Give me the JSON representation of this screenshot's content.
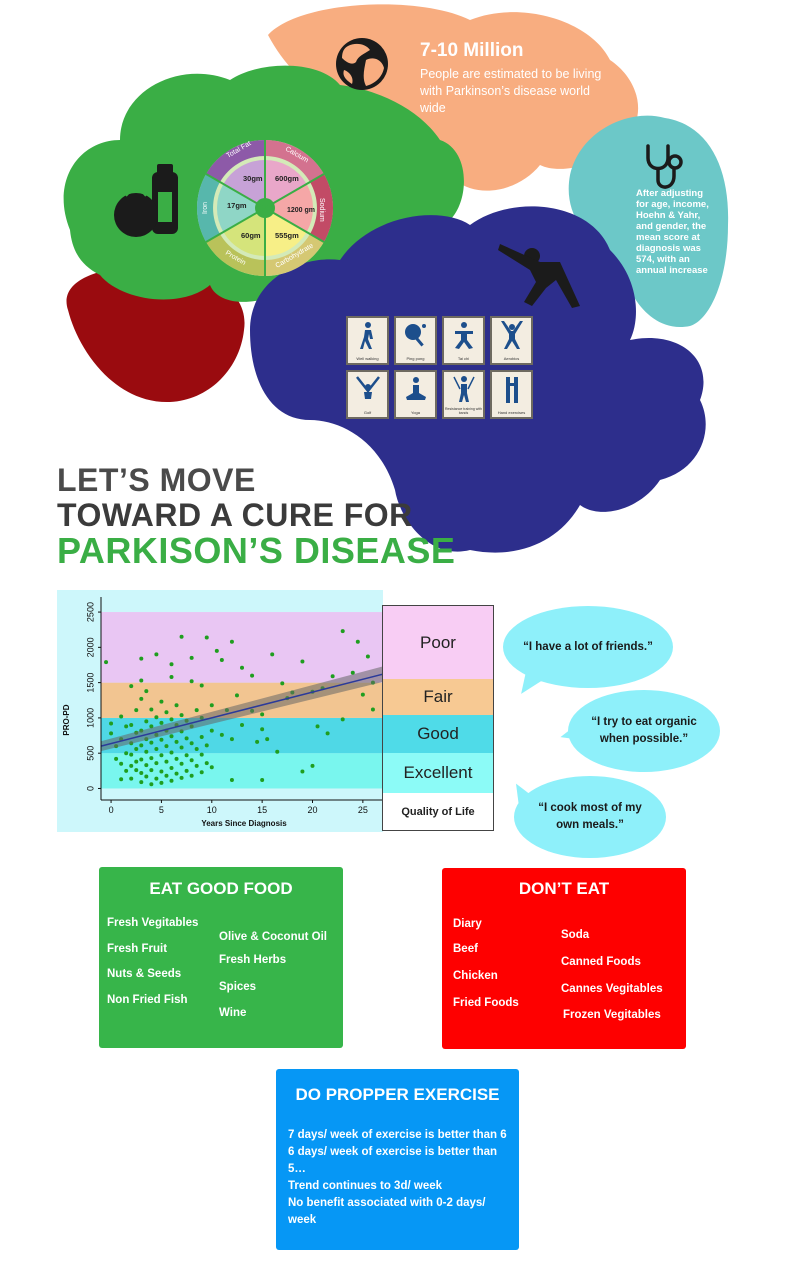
{
  "stats": {
    "population_title": "7-10 Million",
    "population_text": "People are estimated to be living with Parkinson’s disease world wide",
    "pro_pd_text": "After adjusting for age, income, Hoehn & Yahr, and gender, the mean score at diagnosis was 574, with an annual increase"
  },
  "nutrition_wheel": {
    "segments": [
      {
        "label": "Total Fat",
        "value": "30gm"
      },
      {
        "label": "Calcium",
        "value": "600gm"
      },
      {
        "label": "Sodium",
        "value": "1200 gm"
      },
      {
        "label": "Carbohydrate",
        "value": "555gm"
      },
      {
        "label": "Protein",
        "value": "60gm"
      },
      {
        "label": "Iron",
        "value": "17gm"
      }
    ]
  },
  "exercises": [
    "Well walking",
    "Ping pong",
    "Tai chi",
    "Aerobics",
    "Golf",
    "Yoga",
    "Resistance training with bands",
    "Hand exercises"
  ],
  "headline": {
    "line1": "LET’S MOVE",
    "line2": "TOWARD A CURE FOR",
    "line3": "PARKISON’S DISEASE"
  },
  "chart_data": {
    "type": "scatter",
    "xlabel": "Years Since Diagnosis",
    "ylabel": "PRO-PD",
    "xlim": [
      -1,
      27
    ],
    "ylim": [
      -50,
      2600
    ],
    "x_ticks": [
      0,
      5,
      10,
      15,
      20,
      25
    ],
    "y_ticks": [
      0,
      500,
      1000,
      1500,
      2000,
      2500
    ],
    "trend_line": {
      "x": [
        -1,
        27
      ],
      "y": [
        600,
        1620
      ]
    },
    "bands": [
      {
        "name": "Excellent",
        "y0": 0,
        "y1": 500,
        "color": "#79f6ee"
      },
      {
        "name": "Good",
        "y0": 500,
        "y1": 1000,
        "color": "#4fd8e6"
      },
      {
        "name": "Fair",
        "y0": 1000,
        "y1": 1500,
        "color": "#f2c591"
      },
      {
        "name": "Poor",
        "y0": 1500,
        "y1": 2500,
        "color": "#e9c6f3"
      }
    ],
    "points": [
      [
        -0.5,
        1790
      ],
      [
        0,
        920
      ],
      [
        0,
        780
      ],
      [
        0.5,
        600
      ],
      [
        0.5,
        420
      ],
      [
        1,
        350
      ],
      [
        1,
        700
      ],
      [
        1,
        1020
      ],
      [
        1.5,
        250
      ],
      [
        1.5,
        500
      ],
      [
        1.5,
        880
      ],
      [
        2,
        140
      ],
      [
        2,
        320
      ],
      [
        2,
        480
      ],
      [
        2,
        640
      ],
      [
        2,
        900
      ],
      [
        2,
        1450
      ],
      [
        2.5,
        260
      ],
      [
        2.5,
        380
      ],
      [
        2.5,
        560
      ],
      [
        2.5,
        790
      ],
      [
        2.5,
        1110
      ],
      [
        3,
        90
      ],
      [
        3,
        220
      ],
      [
        3,
        410
      ],
      [
        3,
        610
      ],
      [
        3,
        820
      ],
      [
        3,
        1270
      ],
      [
        3,
        1840
      ],
      [
        3.5,
        170
      ],
      [
        3.5,
        330
      ],
      [
        3.5,
        520
      ],
      [
        3.5,
        700
      ],
      [
        3.5,
        950
      ],
      [
        3.5,
        1380
      ],
      [
        4,
        60
      ],
      [
        4,
        260
      ],
      [
        4,
        430
      ],
      [
        4,
        650
      ],
      [
        4,
        880
      ],
      [
        4,
        1120
      ],
      [
        4.5,
        140
      ],
      [
        4.5,
        360
      ],
      [
        4.5,
        560
      ],
      [
        4.5,
        760
      ],
      [
        4.5,
        1010
      ],
      [
        4.5,
        1900
      ],
      [
        5,
        80
      ],
      [
        5,
        240
      ],
      [
        5,
        470
      ],
      [
        5,
        690
      ],
      [
        5,
        930
      ],
      [
        5,
        1230
      ],
      [
        5.5,
        180
      ],
      [
        5.5,
        380
      ],
      [
        5.5,
        600
      ],
      [
        5.5,
        820
      ],
      [
        5.5,
        1080
      ],
      [
        6,
        110
      ],
      [
        6,
        290
      ],
      [
        6,
        510
      ],
      [
        6,
        740
      ],
      [
        6,
        980
      ],
      [
        6,
        1760
      ],
      [
        6.5,
        210
      ],
      [
        6.5,
        420
      ],
      [
        6.5,
        660
      ],
      [
        6.5,
        900
      ],
      [
        6.5,
        1180
      ],
      [
        7,
        150
      ],
      [
        7,
        350
      ],
      [
        7,
        580
      ],
      [
        7,
        810
      ],
      [
        7,
        1040
      ],
      [
        7,
        2150
      ],
      [
        7.5,
        250
      ],
      [
        7.5,
        470
      ],
      [
        7.5,
        710
      ],
      [
        7.5,
        960
      ],
      [
        8,
        180
      ],
      [
        8,
        400
      ],
      [
        8,
        640
      ],
      [
        8,
        880
      ],
      [
        8,
        1520
      ],
      [
        8.5,
        320
      ],
      [
        8.5,
        560
      ],
      [
        8.5,
        1110
      ],
      [
        9,
        230
      ],
      [
        9,
        480
      ],
      [
        9,
        730
      ],
      [
        9,
        1000
      ],
      [
        9,
        1460
      ],
      [
        9.5,
        360
      ],
      [
        9.5,
        610
      ],
      [
        9.5,
        2140
      ],
      [
        10,
        300
      ],
      [
        10,
        820
      ],
      [
        10,
        1180
      ],
      [
        10.5,
        1950
      ],
      [
        11,
        760
      ],
      [
        11,
        1820
      ],
      [
        11.5,
        1110
      ],
      [
        12,
        2080
      ],
      [
        12,
        700
      ],
      [
        12.5,
        1320
      ],
      [
        13,
        1710
      ],
      [
        13,
        900
      ],
      [
        14,
        1600
      ],
      [
        14,
        1100
      ],
      [
        14.5,
        660
      ],
      [
        15,
        1050
      ],
      [
        15,
        840
      ],
      [
        15.5,
        700
      ],
      [
        15,
        120
      ],
      [
        16,
        1900
      ],
      [
        17,
        1490
      ],
      [
        17.5,
        1280
      ],
      [
        18,
        1360
      ],
      [
        19,
        1800
      ],
      [
        19,
        240
      ],
      [
        20,
        1370
      ],
      [
        20.5,
        880
      ],
      [
        21,
        1420
      ],
      [
        21.5,
        780
      ],
      [
        22,
        1590
      ],
      [
        23,
        2230
      ],
      [
        23,
        980
      ],
      [
        24,
        1640
      ],
      [
        24.5,
        2080
      ],
      [
        25,
        1330
      ],
      [
        25.5,
        1870
      ],
      [
        26,
        1120
      ],
      [
        26,
        1500
      ],
      [
        3,
        1530
      ],
      [
        1,
        130
      ],
      [
        16.5,
        520
      ],
      [
        20,
        320
      ],
      [
        8,
        1850
      ],
      [
        12,
        120
      ],
      [
        6,
        1580
      ]
    ]
  },
  "quality_of_life": {
    "poor": "Poor",
    "fair": "Fair",
    "good": "Good",
    "excellent": "Excellent",
    "label": "Quality of Life"
  },
  "quotes": [
    "“I have a lot of friends.”",
    "“I try to eat organic when possible.”",
    "“I cook most of my own meals.”"
  ],
  "eat_good_food": {
    "title": "EAT GOOD FOOD",
    "col1": [
      "Fresh Vegitables",
      "Fresh Fruit",
      "Nuts & Seeds",
      "Non Fried Fish"
    ],
    "col2": [
      "Olive & Coconut Oil",
      "Fresh Herbs",
      "Spices",
      "Wine"
    ]
  },
  "dont_eat": {
    "title": "DON’T EAT",
    "col1": [
      "Diary",
      "Beef",
      "Chicken",
      "Fried Foods"
    ],
    "col2": [
      "Soda",
      "Canned Foods",
      "Cannes Vegitables",
      "Frozen Vegitables"
    ]
  },
  "exercise": {
    "title": "DO PROPPER EXERCISE",
    "lines": [
      "7 days/ week of exercise is better than 6",
      "6 days/ week of exercise is better than 5…",
      "Trend continues to 3d/ week",
      "No benefit associated with 0-2 days/ week"
    ]
  },
  "colors": {
    "green_lobe": "#3aae45",
    "salmon_lobe": "#f8ad80",
    "teal_lobe": "#6cc8c8",
    "navy_lobe": "#2d2e8c",
    "red_lobe": "#9a0b0f",
    "headline_green": "#3aae45",
    "good_food_bg": "#37b54a",
    "dont_eat_bg": "#fe0000",
    "exercise_bg": "#0697f5",
    "bubble": "#8ef0fa"
  }
}
